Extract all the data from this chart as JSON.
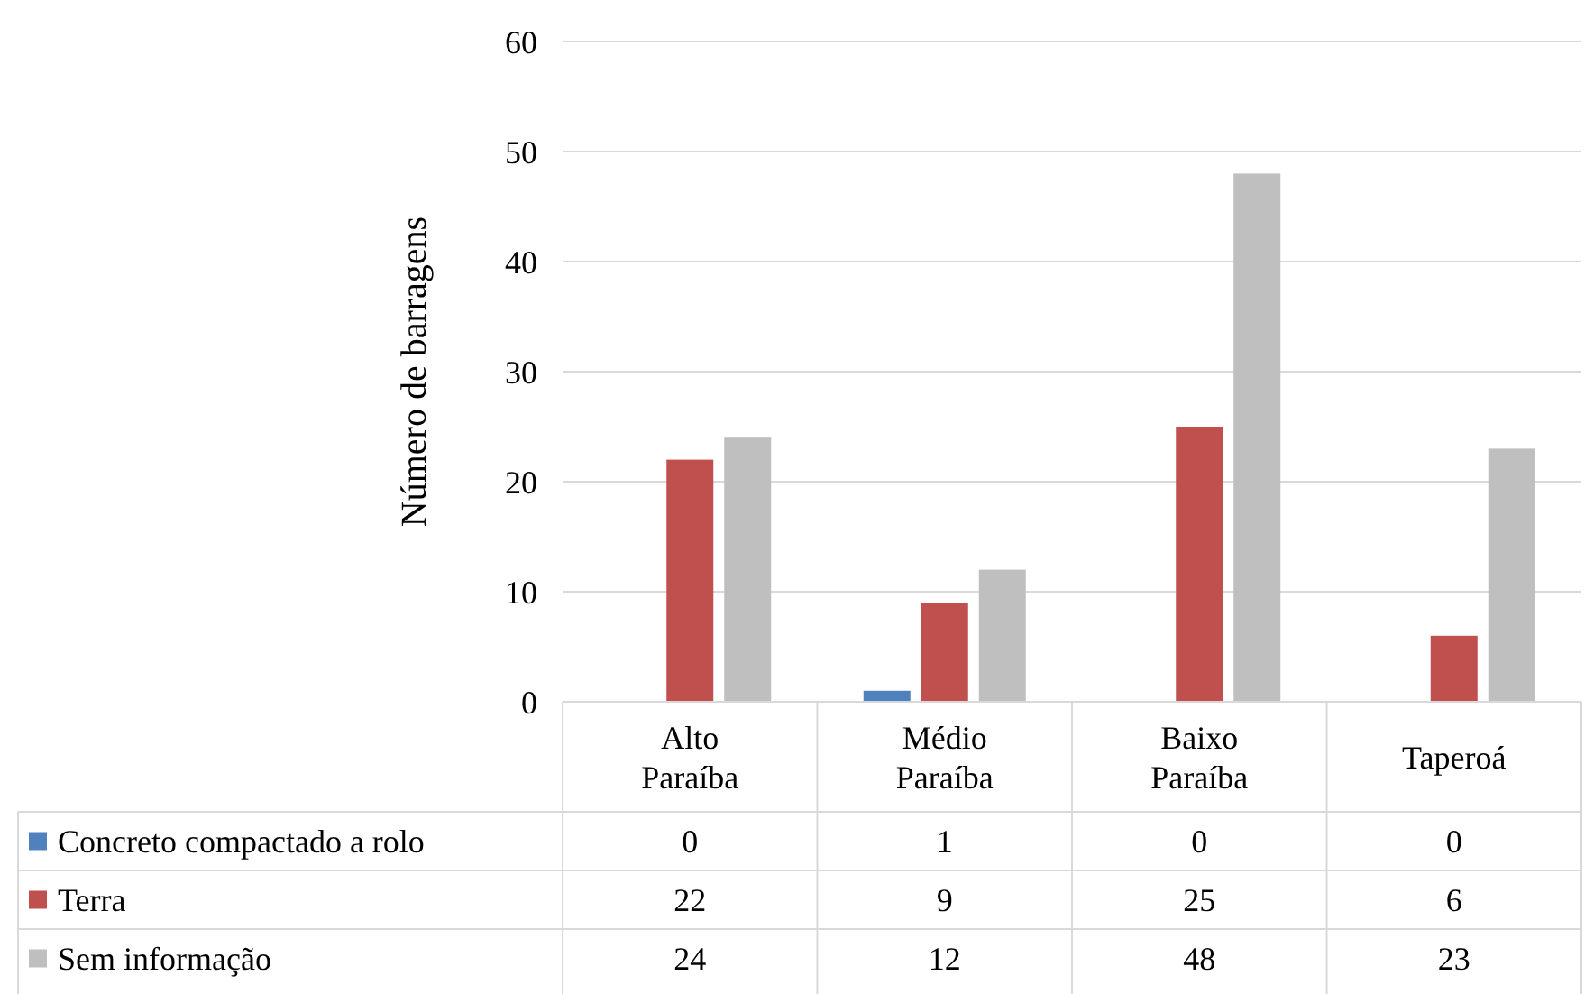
{
  "chart_data": {
    "type": "bar",
    "ylabel": "Número de barragens",
    "categories": [
      "Alto Paraíba",
      "Médio Paraíba",
      "Baixo Paraíba",
      "Taperoá"
    ],
    "series": [
      {
        "name": "Concreto compactado a rolo",
        "color": "#4f81bd",
        "values": [
          0,
          1,
          0,
          0
        ]
      },
      {
        "name": "Terra",
        "color": "#c0504d",
        "values": [
          22,
          9,
          25,
          6
        ]
      },
      {
        "name": "Sem informação",
        "color": "#bfbfbf",
        "values": [
          24,
          12,
          48,
          23
        ]
      }
    ],
    "ylim": [
      0,
      60
    ],
    "yticks": [
      0,
      10,
      20,
      30,
      40,
      50,
      60
    ],
    "grid": "y",
    "legend": "bottom left",
    "data_labels": true
  }
}
